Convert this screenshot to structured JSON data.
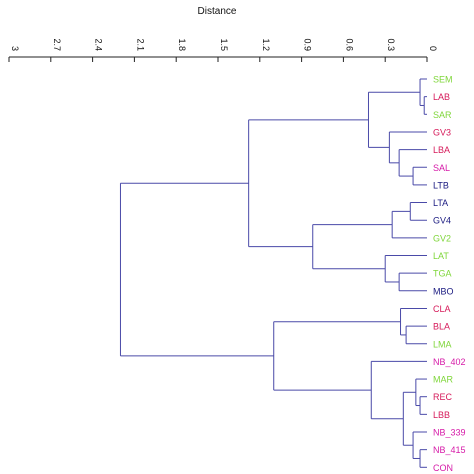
{
  "chart_data": {
    "type": "dendrogram",
    "orientation": "root-left, leaves-right",
    "axis": {
      "title": "Distance",
      "ticks": [
        "3",
        "2.7",
        "2.4",
        "2.1",
        "1.8",
        "1.5",
        "1.2",
        "0.9",
        "0.6",
        "0.3",
        "0"
      ],
      "tick_values": [
        3,
        2.7,
        2.4,
        2.1,
        1.8,
        1.5,
        1.2,
        0.9,
        0.6,
        0.3,
        0
      ],
      "range": [
        3,
        0
      ],
      "position": "top",
      "reversed": true
    },
    "leaves": [
      {
        "label": "SEM",
        "color": "#7fd63a"
      },
      {
        "label": "LAB",
        "color": "#d61a5a"
      },
      {
        "label": "SAR",
        "color": "#7fd63a"
      },
      {
        "label": "GV3",
        "color": "#d61a5a"
      },
      {
        "label": "LBA",
        "color": "#d61a5a"
      },
      {
        "label": "SAL",
        "color": "#d61aa8"
      },
      {
        "label": "LTB",
        "color": "#1a1a80"
      },
      {
        "label": "LTA",
        "color": "#1a1a80"
      },
      {
        "label": "GV4",
        "color": "#1a1a80"
      },
      {
        "label": "GV2",
        "color": "#7fd63a"
      },
      {
        "label": "LAT",
        "color": "#7fd63a"
      },
      {
        "label": "TGA",
        "color": "#7fd63a"
      },
      {
        "label": "MBO",
        "color": "#1a1a80"
      },
      {
        "label": "CLA",
        "color": "#d61a5a"
      },
      {
        "label": "BLA",
        "color": "#d61a5a"
      },
      {
        "label": "LMA",
        "color": "#7fd63a"
      },
      {
        "label": "NB_402",
        "color": "#d61aa8"
      },
      {
        "label": "MAR",
        "color": "#7fd63a"
      },
      {
        "label": "REC",
        "color": "#d61a5a"
      },
      {
        "label": "LBB",
        "color": "#d61a5a"
      },
      {
        "label": "NB_339",
        "color": "#d61aa8"
      },
      {
        "label": "NB_415",
        "color": "#d61aa8"
      },
      {
        "label": "CON",
        "color": "#d61aa8"
      }
    ],
    "clusters": [
      {
        "id": "c1",
        "children": [
          "LAB",
          "SAR"
        ],
        "height": 0.02
      },
      {
        "id": "c2",
        "children": [
          "SEM",
          "c1"
        ],
        "height": 0.05
      },
      {
        "id": "c3",
        "children": [
          "SAL",
          "LTB"
        ],
        "height": 0.1
      },
      {
        "id": "c4",
        "children": [
          "LBA",
          "c3"
        ],
        "height": 0.2
      },
      {
        "id": "c5",
        "children": [
          "GV3",
          "c4"
        ],
        "height": 0.27
      },
      {
        "id": "c6",
        "children": [
          "c2",
          "c5"
        ],
        "height": 0.42
      },
      {
        "id": "c7",
        "children": [
          "LTA",
          "GV4"
        ],
        "height": 0.12
      },
      {
        "id": "c8",
        "children": [
          "c7",
          "GV2"
        ],
        "height": 0.25
      },
      {
        "id": "c9",
        "children": [
          "TGA",
          "MBO"
        ],
        "height": 0.2
      },
      {
        "id": "c10",
        "children": [
          "LAT",
          "c9"
        ],
        "height": 0.3
      },
      {
        "id": "c11",
        "children": [
          "c8",
          "c10"
        ],
        "height": 0.82
      },
      {
        "id": "c12",
        "children": [
          "c6",
          "c11"
        ],
        "height": 1.28
      },
      {
        "id": "c13",
        "children": [
          "BLA",
          "LMA"
        ],
        "height": 0.15
      },
      {
        "id": "c14",
        "children": [
          "CLA",
          "c13"
        ],
        "height": 0.19
      },
      {
        "id": "c15",
        "children": [
          "REC",
          "LBB"
        ],
        "height": 0.05
      },
      {
        "id": "c16",
        "children": [
          "MAR",
          "c15"
        ],
        "height": 0.08
      },
      {
        "id": "c17",
        "children": [
          "NB_415",
          "CON"
        ],
        "height": 0.05
      },
      {
        "id": "c18",
        "children": [
          "NB_339",
          "c17"
        ],
        "height": 0.1
      },
      {
        "id": "c19",
        "children": [
          "c16",
          "c18"
        ],
        "height": 0.17
      },
      {
        "id": "c20",
        "children": [
          "NB_402",
          "c19"
        ],
        "height": 0.4
      },
      {
        "id": "c21",
        "children": [
          "c14",
          "c20"
        ],
        "height": 1.1
      },
      {
        "id": "c22",
        "children": [
          "c12",
          "c21"
        ],
        "height": 2.2
      }
    ],
    "line_color": "#4a4aa8",
    "axis_color": "#222222"
  }
}
